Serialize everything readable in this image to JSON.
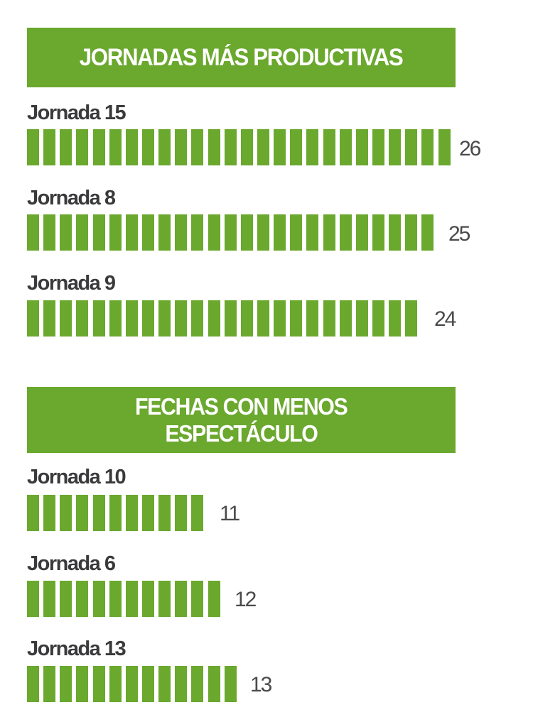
{
  "sections": [
    {
      "title": "JORNADAS MÁS PRODUCTIVAS",
      "rows": [
        {
          "label": "Jornada 15",
          "value": 26,
          "value_text": "26"
        },
        {
          "label": "Jornada 8",
          "value": 25,
          "value_text": "25"
        },
        {
          "label": "Jornada 9",
          "value": 24,
          "value_text": "24"
        }
      ]
    },
    {
      "title_lines": [
        "FECHAS CON MENOS",
        "ESPECTÁCULO"
      ],
      "rows": [
        {
          "label": "Jornada 10",
          "value": 11,
          "value_text": "11"
        },
        {
          "label": "Jornada 6",
          "value": 12,
          "value_text": "12"
        },
        {
          "label": "Jornada 13",
          "value": 13,
          "value_text": "13"
        }
      ]
    }
  ],
  "colors": {
    "accent": "#6aa82e",
    "label": "#3a3a3c",
    "value": "#4a4a4c"
  },
  "chart_data": [
    {
      "type": "bar",
      "orientation": "horizontal",
      "title": "JORNADAS MÁS PRODUCTIVAS",
      "categories": [
        "Jornada 15",
        "Jornada 8",
        "Jornada 9"
      ],
      "values": [
        26,
        25,
        24
      ],
      "xlabel": "",
      "ylabel": "",
      "grid": false,
      "style": "pictogram segments (one block per unit)"
    },
    {
      "type": "bar",
      "orientation": "horizontal",
      "title": "FECHAS CON MENOS ESPECTÁCULO",
      "categories": [
        "Jornada 10",
        "Jornada 6",
        "Jornada 13"
      ],
      "values": [
        11,
        12,
        13
      ],
      "xlabel": "",
      "ylabel": "",
      "grid": false,
      "style": "pictogram segments (one block per unit)"
    }
  ]
}
